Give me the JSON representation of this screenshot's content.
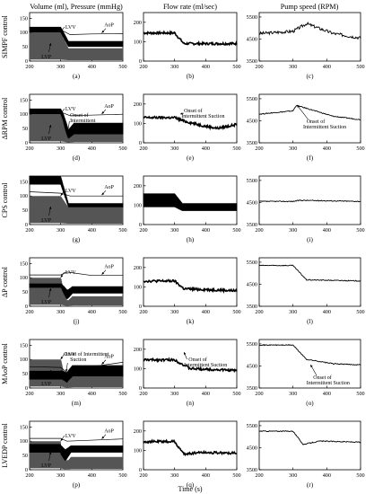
{
  "column_titles": [
    "Volume (ml), Pressure (mmHg)",
    "Flow rate (ml/sec)",
    "Pump speed (RPM)"
  ],
  "row_labels": [
    "SIMPF control",
    "ΔRPM control",
    "CPS control",
    "ΔP control",
    "MAoP control",
    "LVEDP control"
  ],
  "x_title": "Time (s)",
  "x_ticks": [
    "200",
    "300",
    "400",
    "500"
  ],
  "y_ticks": {
    "col1": [
      "0",
      "50",
      "100",
      "150"
    ],
    "col2": [
      "0",
      "100",
      "200"
    ],
    "col3": [
      "3500",
      "4500",
      "5500"
    ]
  },
  "panel_tags": [
    [
      "(a)",
      "(b)",
      "(c)"
    ],
    [
      "(d)",
      "(e)",
      "(f)"
    ],
    [
      "(g)",
      "(h)",
      "(i)"
    ],
    [
      "(j)",
      "(k)",
      "(l)"
    ],
    [
      "(m)",
      "(n)",
      "(o)"
    ],
    [
      "(p)",
      "(q)",
      "(r)"
    ]
  ],
  "annotations": {
    "aop": "AoP",
    "lvv": "LVV",
    "lvp": "LVP",
    "onset_one_line": "Onset of Intermittent Suction",
    "onset_line1": "Onset of",
    "onset_line2": "Intermittent Suction",
    "onset_intermittent": "Onset of Intermittent",
    "suction": "Suction"
  },
  "chart_data": {
    "type": "line",
    "layout": "6 rows x 3 columns of time-series panels",
    "x_range": [
      200,
      500
    ],
    "col1_ylim": [
      0,
      170
    ],
    "col2_ylim": [
      0,
      250
    ],
    "col3_ylim": [
      3500,
      5700
    ],
    "rows": [
      {
        "row": "SIMPF control",
        "col1": {
          "aop": [
            [
              200,
              115
            ],
            [
              300,
              110
            ],
            [
              330,
              93
            ],
            [
              400,
              95
            ],
            [
              500,
              96
            ]
          ],
          "lvv": {
            "before": [
              100,
              120
            ],
            "after": [
              50,
              70
            ]
          },
          "lvp": {
            "before": [
              5,
              100
            ],
            "after": [
              3,
              45
            ]
          }
        },
        "col2": {
          "flow": [
            [
              200,
              145
            ],
            [
              300,
              145
            ],
            [
              330,
              90
            ],
            [
              500,
              90
            ]
          ]
        },
        "col3": {
          "speed": [
            [
              200,
              4750
            ],
            [
              300,
              4850
            ],
            [
              340,
              5200
            ],
            [
              420,
              4750
            ],
            [
              500,
              4550
            ]
          ]
        }
      },
      {
        "row": "ΔRPM control",
        "col1": {
          "aop": [
            [
              200,
              115
            ],
            [
              300,
              108
            ],
            [
              330,
              95
            ],
            [
              500,
              100
            ]
          ],
          "lvv": {
            "before": [
              100,
              120
            ],
            "after": [
              30,
              70
            ]
          },
          "lvp": {
            "before": [
              5,
              100
            ],
            "after": [
              3,
              40
            ]
          },
          "dip_time": 325
        },
        "col2": {
          "flow": [
            [
              200,
              130
            ],
            [
              300,
              130
            ],
            [
              330,
              112
            ],
            [
              400,
              85
            ],
            [
              440,
              75
            ],
            [
              500,
              95
            ]
          ]
        },
        "col3": {
          "speed": [
            [
              200,
              4800
            ],
            [
              300,
              4950
            ],
            [
              310,
              5200
            ],
            [
              420,
              4700
            ],
            [
              500,
              4550
            ]
          ]
        }
      },
      {
        "row": "CPS control",
        "col1": {
          "aop": [
            [
              200,
              115
            ],
            [
              300,
              110
            ],
            [
              330,
              100
            ],
            [
              500,
              100
            ]
          ],
          "lvv": {
            "before": [
              140,
              170
            ],
            "after": [
              60,
              75
            ]
          },
          "lvp": {
            "before": [
              5,
              100
            ],
            "after": [
              3,
              60
            ]
          }
        },
        "col2": {
          "flow": {
            "before": [
              90,
              160
            ],
            "after": [
              70,
              110
            ]
          }
        },
        "col3": {
          "speed": [
            [
              200,
              4550
            ],
            [
              300,
              4550
            ],
            [
              320,
              4600
            ],
            [
              500,
              4550
            ]
          ]
        }
      },
      {
        "row": "ΔP control",
        "col1": {
          "aop": [
            [
              200,
              110
            ],
            [
              300,
              110
            ],
            [
              320,
              120
            ],
            [
              400,
              108
            ],
            [
              500,
              108
            ]
          ],
          "lvv": {
            "before": [
              65,
              80
            ],
            "after": [
              45,
              70
            ]
          },
          "lvp": {
            "before": [
              5,
              100
            ],
            "after": [
              3,
              35
            ]
          },
          "dip_time": 320
        },
        "col2": {
          "flow": [
            [
              200,
              130
            ],
            [
              300,
              130
            ],
            [
              330,
              90
            ],
            [
              500,
              80
            ]
          ]
        },
        "col3": {
          "speed": [
            [
              200,
              5350
            ],
            [
              300,
              5350
            ],
            [
              340,
              4700
            ],
            [
              500,
              4650
            ]
          ]
        }
      },
      {
        "row": "MAoP control",
        "col1": {
          "aop": [
            [
              200,
              75
            ],
            [
              300,
              72
            ],
            [
              320,
              55
            ],
            [
              400,
              75
            ],
            [
              500,
              90
            ]
          ],
          "lvv": {
            "before": [
              30,
              60
            ],
            "after": [
              40,
              80
            ]
          },
          "lvp": {
            "before": [
              5,
              100
            ],
            "after": [
              3,
              40
            ]
          },
          "dip_time": 320
        },
        "col2": {
          "flow": [
            [
              200,
              145
            ],
            [
              300,
              145
            ],
            [
              350,
              100
            ],
            [
              500,
              90
            ]
          ]
        },
        "col3": {
          "speed": [
            [
              200,
              5450
            ],
            [
              300,
              5450
            ],
            [
              340,
              4800
            ],
            [
              420,
              4600
            ],
            [
              500,
              4550
            ]
          ]
        }
      },
      {
        "row": "LVEDP control",
        "col1": {
          "aop": [
            [
              200,
              110
            ],
            [
              300,
              110
            ],
            [
              320,
              100
            ],
            [
              500,
              108
            ]
          ],
          "lvv": {
            "before": [
              60,
              90
            ],
            "after": [
              60,
              85
            ]
          },
          "lvp": {
            "before": [
              5,
              100
            ],
            "after": [
              3,
              45
            ]
          },
          "dip_time": 315
        },
        "col2": {
          "flow": [
            [
              200,
              145
            ],
            [
              300,
              145
            ],
            [
              330,
              80
            ],
            [
              380,
              90
            ],
            [
              500,
              85
            ]
          ]
        },
        "col3": {
          "speed": [
            [
              200,
              5250
            ],
            [
              300,
              5250
            ],
            [
              330,
              4650
            ],
            [
              380,
              4800
            ],
            [
              500,
              4750
            ]
          ]
        }
      }
    ]
  }
}
